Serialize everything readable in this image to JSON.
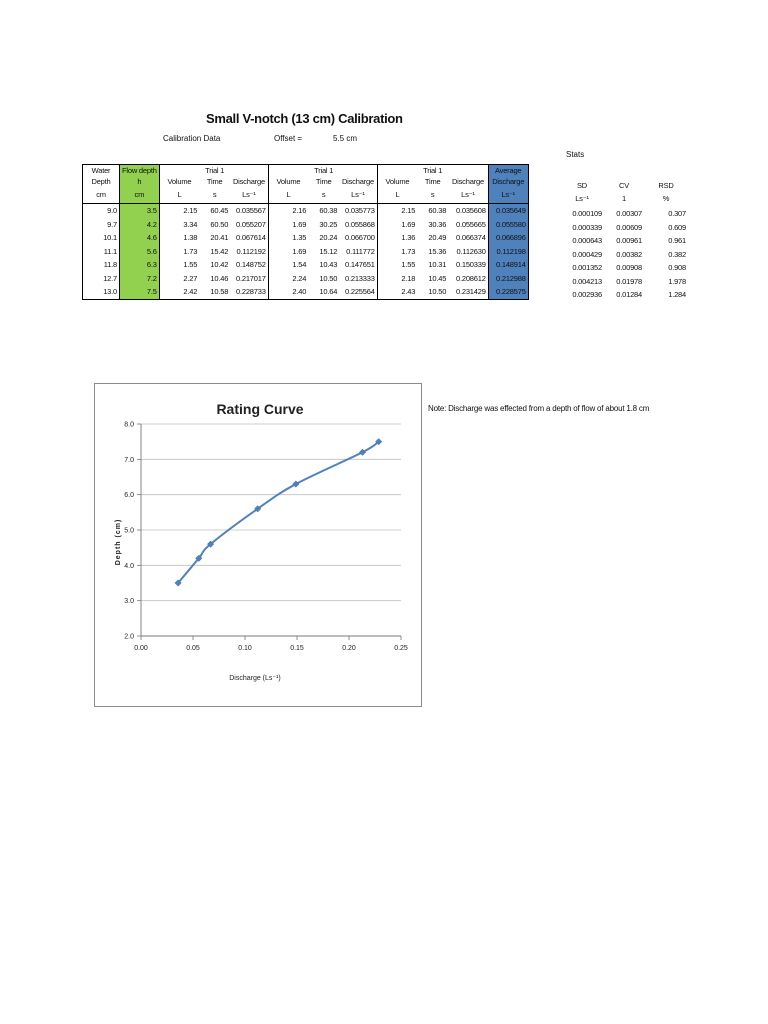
{
  "document": {
    "title": "Small V-notch  (13 cm) Calibration",
    "calibration_label": "Calibration Data",
    "offset_label": "Offset =",
    "offset_value": "5.5 cm",
    "stats_label": "Stats",
    "note": "Note: Discharge was effected from a depth of flow of about 1.8 cm"
  },
  "table": {
    "header_row1": [
      "Water",
      "Flow depth",
      "",
      "Trial 1",
      "",
      "",
      "Trial 1",
      "",
      "",
      "Trial 1",
      "",
      "Average"
    ],
    "header_row2": [
      "Depth",
      "h",
      "Volume",
      "Time",
      "Discharge",
      "Volume",
      "Time",
      "Discharge",
      "Volume",
      "Time",
      "Discharge",
      "Discharge"
    ],
    "units": [
      "cm",
      "cm",
      "L",
      "s",
      "Ls⁻¹",
      "L",
      "s",
      "Ls⁻¹",
      "L",
      "s",
      "Ls⁻¹",
      "Ls⁻¹"
    ],
    "rows": [
      [
        "9.0",
        "3.5",
        "2.15",
        "60.45",
        "0.035567",
        "2.16",
        "60.38",
        "0.035773",
        "2.15",
        "60.38",
        "0.035608",
        "0.035649"
      ],
      [
        "9.7",
        "4.2",
        "3.34",
        "60.50",
        "0.055207",
        "1.69",
        "30.25",
        "0.055868",
        "1.69",
        "30.36",
        "0.055665",
        "0.055580"
      ],
      [
        "10.1",
        "4.6",
        "1.38",
        "20.41",
        "0.067614",
        "1.35",
        "20.24",
        "0.066700",
        "1.36",
        "20.49",
        "0.066374",
        "0.066896"
      ],
      [
        "11.1",
        "5.6",
        "1.73",
        "15.42",
        "0.112192",
        "1.69",
        "15.12",
        "0.111772",
        "1.73",
        "15.36",
        "0.112630",
        "0.112198"
      ],
      [
        "11.8",
        "6.3",
        "1.55",
        "10.42",
        "0.148752",
        "1.54",
        "10.43",
        "0.147651",
        "1.55",
        "10.31",
        "0.150339",
        "0.148914"
      ],
      [
        "12.7",
        "7.2",
        "2.27",
        "10.46",
        "0.217017",
        "2.24",
        "10.50",
        "0.213333",
        "2.18",
        "10.45",
        "0.208612",
        "0.212988"
      ],
      [
        "13.0",
        "7.5",
        "2.42",
        "10.58",
        "0.228733",
        "2.40",
        "10.64",
        "0.225564",
        "2.43",
        "10.50",
        "0.231429",
        "0.228575"
      ]
    ]
  },
  "stats": {
    "headers": [
      "SD",
      "CV",
      "RSD"
    ],
    "units": [
      "Ls⁻¹",
      "1",
      "%"
    ],
    "rows": [
      [
        "0.000109",
        "0.00307",
        "0.307"
      ],
      [
        "0.000339",
        "0.00609",
        "0.609"
      ],
      [
        "0.000643",
        "0.00961",
        "0.961"
      ],
      [
        "0.000429",
        "0.00382",
        "0.382"
      ],
      [
        "0.001352",
        "0.00908",
        "0.908"
      ],
      [
        "0.004213",
        "0.01978",
        "1.978"
      ],
      [
        "0.002936",
        "0.01284",
        "1.284"
      ]
    ]
  },
  "colors": {
    "flow_depth_highlight": "#92d050",
    "average_highlight": "#4f81bd",
    "series_line": "#4f81bd"
  },
  "chart_data": {
    "type": "scatter",
    "title": "Rating Curve",
    "xlabel": "Discharge (Ls⁻¹)",
    "ylabel": "Depth (cm)",
    "xlim": [
      0,
      0.25
    ],
    "ylim": [
      2.0,
      8.0
    ],
    "xticks": [
      "0.00",
      "0.05",
      "0.10",
      "0.15",
      "0.20",
      "0.25"
    ],
    "yticks": [
      "2.0",
      "3.0",
      "4.0",
      "5.0",
      "6.0",
      "7.0",
      "8.0"
    ],
    "grid": true,
    "legend": "none",
    "series": [
      {
        "x": [
          0.035649,
          0.05558,
          0.066896,
          0.112198,
          0.148914,
          0.212988,
          0.228575
        ],
        "y": [
          3.5,
          4.2,
          4.6,
          5.6,
          6.3,
          7.2,
          7.5
        ]
      }
    ]
  }
}
